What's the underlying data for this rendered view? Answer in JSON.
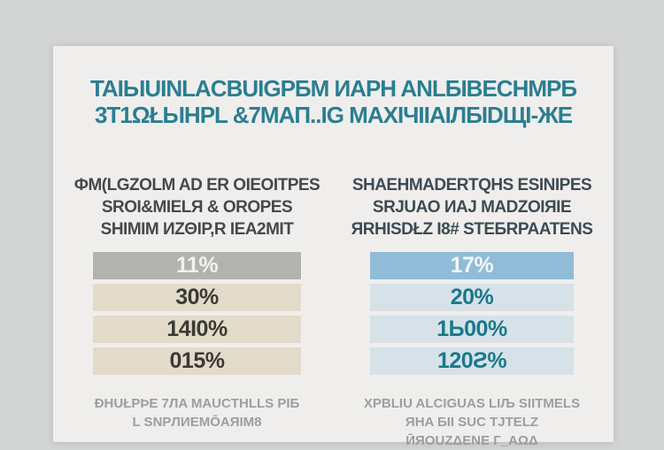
{
  "title": {
    "line1": "TAIЫUINLACBUIGPБM ИAPH ANLБIBECHMPБ",
    "line2": "3T1ΩŁЫHPL &7MAП..IG MAXIЧIIAIЛБIDЩI-ЖЕ"
  },
  "columns": [
    {
      "header_lines": [
        "ФM(LGZOLM AD ER OIEOITPES",
        "SROI&MIELЯ & OROPES",
        "SHIMIM ИZΘIP,R IEA2MIT"
      ],
      "rows": [
        "11%",
        "30%",
        "14I0%",
        "015%"
      ],
      "footer_lines": [
        "ÐHUŁPÞE 7ЛA MAUCTHLLS PIБ",
        "L SNPЛИEMŌAЯIM8"
      ]
    },
    {
      "header_lines": [
        "SHAEHMADERTQHS ESINIPES",
        "SRJUAO ИAJ MADZOIЯIE",
        "ЯRHISDŁZ I8# STEБRPAATENS"
      ],
      "rows": [
        "17%",
        "20%",
        "1Ь00%",
        "120Ƨ%"
      ],
      "footer_lines": [
        "XPBLIU ALCIGUAS LIЉ SIITMELS",
        "ЯHA БII SUC TJTELZ",
        "ӢЯOUZΔENE Г_AΩΔ"
      ]
    }
  ],
  "colors": {
    "page_background": "#d2d5d4",
    "card_background": "#efeeec",
    "title_text": "#2a7e92",
    "left_header_text": "#46484b",
    "right_header_text": "#3d4b53",
    "left_lead_row_bg": "#b2b3b1",
    "left_row_bg": "#e2dbc9",
    "left_row_text": "#3b3a36",
    "right_lead_row_bg": "#90bcd7",
    "right_row_bg": "#d6e2e8",
    "right_row_text": "#19798c",
    "footer_text": "#9c9e9d"
  },
  "chart_data": {
    "type": "table",
    "title": "TAIЫUINLACBUIGPБM ИAPH ANLБIBECHMPБ 3T1ΩŁЫHPL &7MAП..IG MAXIЧIIAIЛБIDЩI-ЖЕ",
    "series": [
      {
        "name": "ФM(LGZOLM AD ER OIEOITPES SROI&MIELЯ & OROPES SHIMIM ИZΘIP,R IEA2MIT",
        "values": [
          "11%",
          "30%",
          "14I0%",
          "015%"
        ]
      },
      {
        "name": "SHAEHMADERTQHS ESINIPES SRJUAO ИAJ MADZOIЯIE ЯRHISDŁZ I8# STEБRPAATENS",
        "values": [
          "17%",
          "20%",
          "1Ь00%",
          "120Ƨ%"
        ]
      }
    ],
    "legend_position": "none",
    "grid": false
  }
}
